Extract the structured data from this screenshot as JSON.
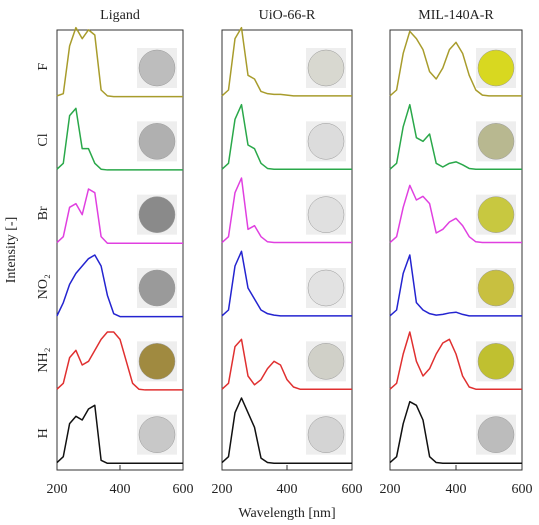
{
  "chart_data": [
    {
      "type": "line",
      "title": "Ligand",
      "ylabel": "Intensity [-]",
      "x": [
        200,
        220,
        240,
        260,
        280,
        300,
        320,
        340,
        360,
        380,
        400,
        420,
        440,
        460,
        480,
        500,
        520,
        540,
        560,
        580,
        600
      ],
      "xlim": [
        200,
        600
      ],
      "xticks": [
        200,
        400,
        600
      ],
      "series": [
        {
          "name": "F",
          "color": "#a89c2c",
          "values": [
            0.02,
            0.05,
            0.7,
            0.95,
            0.8,
            0.92,
            0.85,
            0.1,
            0.02,
            0.01,
            0.01,
            0.01,
            0.01,
            0.01,
            0.01,
            0.01,
            0.01,
            0.01,
            0.01,
            0.01,
            0.01
          ]
        },
        {
          "name": "Cl",
          "color": "#2aa84a",
          "values": [
            0.02,
            0.1,
            0.75,
            0.85,
            0.3,
            0.3,
            0.1,
            0.02,
            0.01,
            0.01,
            0.01,
            0.01,
            0.01,
            0.01,
            0.01,
            0.01,
            0.01,
            0.01,
            0.01,
            0.01,
            0.01
          ]
        },
        {
          "name": "Br",
          "color": "#e040e0",
          "values": [
            0.02,
            0.1,
            0.5,
            0.55,
            0.4,
            0.75,
            0.7,
            0.1,
            0.01,
            0.01,
            0.01,
            0.01,
            0.01,
            0.01,
            0.01,
            0.01,
            0.01,
            0.01,
            0.01,
            0.01,
            0.01
          ]
        },
        {
          "name": "NO₂",
          "color": "#2424d0",
          "values": [
            0.02,
            0.2,
            0.45,
            0.6,
            0.7,
            0.8,
            0.85,
            0.7,
            0.3,
            0.05,
            0.01,
            0.01,
            0.01,
            0.01,
            0.01,
            0.01,
            0.01,
            0.01,
            0.01,
            0.01,
            0.01
          ]
        },
        {
          "name": "NH₂",
          "color": "#e03030",
          "values": [
            0.02,
            0.1,
            0.45,
            0.55,
            0.35,
            0.4,
            0.55,
            0.7,
            0.8,
            0.8,
            0.7,
            0.4,
            0.1,
            0.02,
            0.01,
            0.01,
            0.01,
            0.01,
            0.01,
            0.01,
            0.01
          ]
        },
        {
          "name": "H",
          "color": "#111111",
          "values": [
            0.02,
            0.1,
            0.55,
            0.65,
            0.6,
            0.75,
            0.8,
            0.05,
            0.01,
            0.01,
            0.01,
            0.01,
            0.01,
            0.01,
            0.01,
            0.01,
            0.01,
            0.01,
            0.01,
            0.01,
            0.01
          ]
        }
      ]
    },
    {
      "type": "line",
      "title": "UiO-66-R",
      "xlabel": "Wavelength [nm]",
      "x": [
        200,
        220,
        240,
        260,
        280,
        300,
        320,
        340,
        360,
        380,
        400,
        420,
        440,
        460,
        480,
        500,
        520,
        540,
        560,
        580,
        600
      ],
      "xlim": [
        200,
        600
      ],
      "xticks": [
        200,
        400,
        600
      ],
      "series": [
        {
          "name": "F",
          "color": "#a89c2c",
          "values": [
            0.02,
            0.1,
            0.8,
            0.95,
            0.3,
            0.25,
            0.08,
            0.05,
            0.04,
            0.04,
            0.03,
            0.02,
            0.02,
            0.02,
            0.02,
            0.02,
            0.02,
            0.02,
            0.02,
            0.02,
            0.02
          ]
        },
        {
          "name": "Cl",
          "color": "#2aa84a",
          "values": [
            0.02,
            0.1,
            0.7,
            0.9,
            0.35,
            0.3,
            0.1,
            0.03,
            0.02,
            0.02,
            0.02,
            0.02,
            0.02,
            0.02,
            0.02,
            0.02,
            0.02,
            0.02,
            0.02,
            0.02,
            0.02
          ]
        },
        {
          "name": "Br",
          "color": "#e040e0",
          "values": [
            0.02,
            0.1,
            0.7,
            0.9,
            0.2,
            0.25,
            0.1,
            0.03,
            0.02,
            0.02,
            0.02,
            0.02,
            0.02,
            0.02,
            0.02,
            0.02,
            0.02,
            0.02,
            0.02,
            0.02,
            0.02
          ]
        },
        {
          "name": "NO₂",
          "color": "#2424d0",
          "values": [
            0.02,
            0.1,
            0.7,
            0.9,
            0.4,
            0.25,
            0.1,
            0.05,
            0.03,
            0.02,
            0.02,
            0.02,
            0.02,
            0.02,
            0.02,
            0.02,
            0.02,
            0.02,
            0.02,
            0.02,
            0.02
          ]
        },
        {
          "name": "NH₂",
          "color": "#e03030",
          "values": [
            0.02,
            0.1,
            0.6,
            0.7,
            0.2,
            0.08,
            0.15,
            0.3,
            0.4,
            0.35,
            0.15,
            0.05,
            0.02,
            0.02,
            0.02,
            0.02,
            0.02,
            0.02,
            0.02,
            0.02,
            0.02
          ]
        },
        {
          "name": "H",
          "color": "#111111",
          "values": [
            0.02,
            0.1,
            0.7,
            0.9,
            0.7,
            0.5,
            0.08,
            0.02,
            0.01,
            0.01,
            0.01,
            0.01,
            0.01,
            0.01,
            0.01,
            0.01,
            0.01,
            0.01,
            0.01,
            0.01,
            0.01
          ]
        }
      ]
    },
    {
      "type": "line",
      "title": "MIL-140A-R",
      "x": [
        200,
        220,
        240,
        260,
        280,
        300,
        320,
        340,
        360,
        380,
        400,
        420,
        440,
        460,
        480,
        500,
        520,
        540,
        560,
        580,
        600
      ],
      "xlim": [
        200,
        600
      ],
      "xticks": [
        200,
        400,
        600
      ],
      "series": [
        {
          "name": "F",
          "color": "#a89c2c",
          "values": [
            0.02,
            0.1,
            0.6,
            0.9,
            0.8,
            0.65,
            0.35,
            0.25,
            0.4,
            0.65,
            0.75,
            0.6,
            0.3,
            0.1,
            0.03,
            0.02,
            0.02,
            0.02,
            0.02,
            0.02,
            0.02
          ]
        },
        {
          "name": "Cl",
          "color": "#2aa84a",
          "values": [
            0.02,
            0.1,
            0.6,
            0.9,
            0.45,
            0.4,
            0.5,
            0.1,
            0.05,
            0.1,
            0.12,
            0.08,
            0.03,
            0.02,
            0.02,
            0.02,
            0.02,
            0.02,
            0.02,
            0.02,
            0.02
          ]
        },
        {
          "name": "Br",
          "color": "#e040e0",
          "values": [
            0.02,
            0.1,
            0.5,
            0.8,
            0.6,
            0.65,
            0.55,
            0.15,
            0.2,
            0.3,
            0.35,
            0.25,
            0.1,
            0.03,
            0.02,
            0.02,
            0.02,
            0.02,
            0.02,
            0.02,
            0.02
          ]
        },
        {
          "name": "NO₂",
          "color": "#2424d0",
          "values": [
            0.02,
            0.1,
            0.6,
            0.85,
            0.2,
            0.1,
            0.05,
            0.03,
            0.04,
            0.06,
            0.07,
            0.04,
            0.02,
            0.02,
            0.02,
            0.02,
            0.02,
            0.02,
            0.02,
            0.02,
            0.02
          ]
        },
        {
          "name": "NH₂",
          "color": "#e03030",
          "values": [
            0.02,
            0.1,
            0.5,
            0.8,
            0.4,
            0.2,
            0.3,
            0.5,
            0.65,
            0.7,
            0.5,
            0.2,
            0.05,
            0.02,
            0.02,
            0.02,
            0.02,
            0.02,
            0.02,
            0.02,
            0.02
          ]
        },
        {
          "name": "H",
          "color": "#111111",
          "values": [
            0.02,
            0.1,
            0.55,
            0.85,
            0.8,
            0.6,
            0.1,
            0.02,
            0.01,
            0.01,
            0.01,
            0.01,
            0.01,
            0.01,
            0.01,
            0.01,
            0.01,
            0.01,
            0.01,
            0.01,
            0.01
          ]
        }
      ]
    }
  ]
}
